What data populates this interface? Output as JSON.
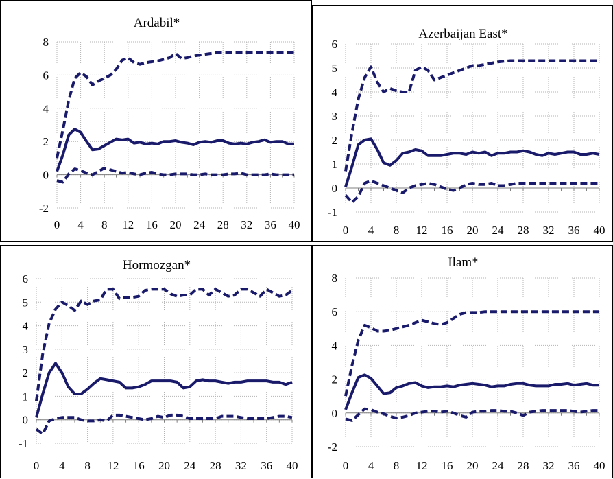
{
  "chart_data": [
    {
      "type": "line",
      "title": "Ardabil*",
      "ylim": [
        -2,
        8
      ],
      "yticks": [
        -2,
        0,
        2,
        4,
        6,
        8
      ],
      "xlim": [
        0,
        40
      ],
      "xticks": [
        0,
        4,
        8,
        12,
        16,
        20,
        24,
        28,
        32,
        36,
        40
      ],
      "grid": true,
      "series": [
        {
          "style": "dashed",
          "x": [
            0,
            1,
            2,
            3,
            4,
            5,
            6,
            7,
            8,
            9,
            10,
            11,
            12,
            13,
            14,
            15,
            16,
            17,
            18,
            19,
            20,
            21,
            22,
            23,
            24,
            25,
            26,
            27,
            28,
            29,
            30,
            31,
            32,
            33,
            34,
            35,
            36,
            37,
            38,
            39,
            40
          ],
          "values": [
            1.0,
            2.7,
            4.5,
            5.8,
            6.15,
            5.9,
            5.4,
            5.65,
            5.8,
            6.0,
            6.35,
            6.9,
            7.05,
            6.75,
            6.65,
            6.75,
            6.8,
            6.85,
            6.95,
            7.05,
            7.3,
            7.0,
            7.05,
            7.15,
            7.2,
            7.25,
            7.3,
            7.35,
            7.35,
            7.35,
            7.35,
            7.35,
            7.35,
            7.35,
            7.35,
            7.35,
            7.35,
            7.35,
            7.35,
            7.35,
            7.35
          ]
        },
        {
          "style": "solid",
          "x": [
            0,
            1,
            2,
            3,
            4,
            5,
            6,
            7,
            8,
            9,
            10,
            11,
            12,
            13,
            14,
            15,
            16,
            17,
            18,
            19,
            20,
            21,
            22,
            23,
            24,
            25,
            26,
            27,
            28,
            29,
            30,
            31,
            32,
            33,
            34,
            35,
            36,
            37,
            38,
            39,
            40
          ],
          "values": [
            0.2,
            1.2,
            2.4,
            2.75,
            2.55,
            2.0,
            1.5,
            1.55,
            1.75,
            1.95,
            2.15,
            2.1,
            2.15,
            1.9,
            1.95,
            1.85,
            1.9,
            1.85,
            2.0,
            2.0,
            2.05,
            1.95,
            1.9,
            1.8,
            1.95,
            2.0,
            1.95,
            2.05,
            2.05,
            1.9,
            1.85,
            1.9,
            1.85,
            1.95,
            2.0,
            2.1,
            1.95,
            2.0,
            2.0,
            1.85,
            1.85
          ]
        },
        {
          "style": "dashed",
          "x": [
            0,
            1,
            2,
            3,
            4,
            5,
            6,
            7,
            8,
            9,
            10,
            11,
            12,
            13,
            14,
            15,
            16,
            17,
            18,
            19,
            20,
            21,
            22,
            23,
            24,
            25,
            26,
            27,
            28,
            29,
            30,
            31,
            32,
            33,
            34,
            35,
            36,
            37,
            38,
            39,
            40
          ],
          "values": [
            -0.35,
            -0.45,
            0.05,
            0.35,
            0.25,
            0.1,
            0.0,
            0.2,
            0.4,
            0.3,
            0.2,
            0.1,
            0.15,
            0.05,
            0.0,
            0.1,
            0.15,
            0.05,
            0.0,
            0.0,
            0.05,
            0.05,
            0.05,
            0.0,
            0.0,
            0.05,
            0.0,
            0.0,
            0.0,
            0.05,
            0.05,
            0.1,
            0.0,
            0.0,
            0.0,
            0.0,
            0.05,
            0.0,
            0.0,
            0.0,
            0.0
          ]
        }
      ]
    },
    {
      "type": "line",
      "title": "Azerbaijan East*",
      "ylim": [
        -1,
        6
      ],
      "yticks": [
        -1,
        0,
        1,
        2,
        3,
        4,
        5,
        6
      ],
      "xlim": [
        0,
        40
      ],
      "xticks": [
        0,
        4,
        8,
        12,
        16,
        20,
        24,
        28,
        32,
        36,
        40
      ],
      "grid": true,
      "series": [
        {
          "style": "dashed",
          "x": [
            0,
            1,
            2,
            3,
            4,
            5,
            6,
            7,
            8,
            9,
            10,
            11,
            12,
            13,
            14,
            15,
            16,
            17,
            18,
            19,
            20,
            21,
            22,
            23,
            24,
            25,
            26,
            27,
            28,
            29,
            30,
            31,
            32,
            33,
            34,
            35,
            36,
            37,
            38,
            39,
            40
          ],
          "values": [
            0.7,
            2.3,
            3.7,
            4.6,
            5.05,
            4.4,
            4.0,
            4.15,
            4.05,
            4.0,
            4.0,
            4.9,
            5.05,
            4.9,
            4.5,
            4.6,
            4.7,
            4.8,
            4.9,
            5.0,
            5.1,
            5.1,
            5.15,
            5.2,
            5.25,
            5.28,
            5.3,
            5.3,
            5.3,
            5.3,
            5.3,
            5.3,
            5.3,
            5.3,
            5.3,
            5.3,
            5.3,
            5.3,
            5.3,
            5.3,
            5.3
          ]
        },
        {
          "style": "solid",
          "x": [
            0,
            1,
            2,
            3,
            4,
            5,
            6,
            7,
            8,
            9,
            10,
            11,
            12,
            13,
            14,
            15,
            16,
            17,
            18,
            19,
            20,
            21,
            22,
            23,
            24,
            25,
            26,
            27,
            28,
            29,
            30,
            31,
            32,
            33,
            34,
            35,
            36,
            37,
            38,
            39,
            40
          ],
          "values": [
            0.05,
            0.9,
            1.8,
            2.0,
            2.05,
            1.6,
            1.05,
            0.95,
            1.15,
            1.45,
            1.5,
            1.6,
            1.55,
            1.35,
            1.35,
            1.35,
            1.4,
            1.45,
            1.45,
            1.4,
            1.5,
            1.45,
            1.5,
            1.35,
            1.45,
            1.45,
            1.5,
            1.5,
            1.55,
            1.5,
            1.4,
            1.35,
            1.45,
            1.4,
            1.45,
            1.5,
            1.5,
            1.4,
            1.4,
            1.45,
            1.4
          ]
        },
        {
          "style": "dashed",
          "x": [
            0,
            1,
            2,
            3,
            4,
            5,
            6,
            7,
            8,
            9,
            10,
            11,
            12,
            13,
            14,
            15,
            16,
            17,
            18,
            19,
            20,
            21,
            22,
            23,
            24,
            25,
            26,
            27,
            28,
            29,
            30,
            31,
            32,
            33,
            34,
            35,
            36,
            37,
            38,
            39,
            40
          ],
          "values": [
            -0.3,
            -0.6,
            -0.35,
            0.2,
            0.3,
            0.2,
            0.1,
            0.0,
            -0.1,
            -0.2,
            0.0,
            0.1,
            0.15,
            0.2,
            0.15,
            0.05,
            -0.05,
            -0.1,
            0.0,
            0.15,
            0.2,
            0.15,
            0.15,
            0.2,
            0.1,
            0.1,
            0.15,
            0.2,
            0.2,
            0.2,
            0.2,
            0.2,
            0.2,
            0.2,
            0.2,
            0.2,
            0.2,
            0.2,
            0.2,
            0.2,
            0.2
          ]
        }
      ]
    },
    {
      "type": "line",
      "title": "Hormozgan*",
      "ylim": [
        -1,
        6
      ],
      "yticks": [
        -1,
        0,
        1,
        2,
        3,
        4,
        5,
        6
      ],
      "xlim": [
        0,
        40
      ],
      "xticks": [
        0,
        4,
        8,
        12,
        16,
        20,
        24,
        28,
        32,
        36,
        40
      ],
      "grid": true,
      "series": [
        {
          "style": "dashed",
          "x": [
            0,
            1,
            2,
            3,
            4,
            5,
            6,
            7,
            8,
            9,
            10,
            11,
            12,
            13,
            14,
            15,
            16,
            17,
            18,
            19,
            20,
            21,
            22,
            23,
            24,
            25,
            26,
            27,
            28,
            29,
            30,
            31,
            32,
            33,
            34,
            35,
            36,
            37,
            38,
            39,
            40
          ],
          "values": [
            0.8,
            2.8,
            4.1,
            4.7,
            5.0,
            4.85,
            4.65,
            5.05,
            4.9,
            5.05,
            5.1,
            5.55,
            5.55,
            5.15,
            5.2,
            5.2,
            5.25,
            5.5,
            5.55,
            5.55,
            5.55,
            5.35,
            5.25,
            5.3,
            5.3,
            5.55,
            5.55,
            5.3,
            5.55,
            5.4,
            5.25,
            5.3,
            5.55,
            5.55,
            5.4,
            5.25,
            5.55,
            5.4,
            5.25,
            5.3,
            5.5
          ]
        },
        {
          "style": "solid",
          "x": [
            0,
            1,
            2,
            3,
            4,
            5,
            6,
            7,
            8,
            9,
            10,
            11,
            12,
            13,
            14,
            15,
            16,
            17,
            18,
            19,
            20,
            21,
            22,
            23,
            24,
            25,
            26,
            27,
            28,
            29,
            30,
            31,
            32,
            33,
            34,
            35,
            36,
            37,
            38,
            39,
            40
          ],
          "values": [
            0.1,
            1.1,
            2.0,
            2.4,
            2.0,
            1.4,
            1.1,
            1.1,
            1.3,
            1.55,
            1.75,
            1.7,
            1.65,
            1.6,
            1.35,
            1.35,
            1.4,
            1.5,
            1.65,
            1.65,
            1.65,
            1.65,
            1.6,
            1.35,
            1.4,
            1.65,
            1.7,
            1.65,
            1.65,
            1.6,
            1.55,
            1.6,
            1.6,
            1.65,
            1.65,
            1.65,
            1.65,
            1.6,
            1.6,
            1.5,
            1.6
          ]
        },
        {
          "style": "dashed",
          "x": [
            0,
            1,
            2,
            3,
            4,
            5,
            6,
            7,
            8,
            9,
            10,
            11,
            12,
            13,
            14,
            15,
            16,
            17,
            18,
            19,
            20,
            21,
            22,
            23,
            24,
            25,
            26,
            27,
            28,
            29,
            30,
            31,
            32,
            33,
            34,
            35,
            36,
            37,
            38,
            39,
            40
          ],
          "values": [
            -0.4,
            -0.6,
            -0.05,
            0.05,
            0.1,
            0.1,
            0.1,
            0.0,
            -0.05,
            -0.05,
            0.0,
            -0.05,
            0.2,
            0.2,
            0.15,
            0.1,
            0.05,
            0.0,
            0.05,
            0.15,
            0.1,
            0.2,
            0.2,
            0.15,
            0.05,
            0.05,
            0.05,
            0.05,
            0.05,
            0.15,
            0.15,
            0.15,
            0.1,
            0.05,
            0.05,
            0.05,
            0.05,
            0.1,
            0.15,
            0.15,
            0.1
          ]
        }
      ]
    },
    {
      "type": "line",
      "title": "Ilam*",
      "ylim": [
        -2,
        8
      ],
      "yticks": [
        -2,
        0,
        2,
        4,
        6,
        8
      ],
      "xlim": [
        0,
        40
      ],
      "xticks": [
        0,
        4,
        8,
        12,
        16,
        20,
        24,
        28,
        32,
        36,
        40
      ],
      "grid": true,
      "series": [
        {
          "style": "dashed",
          "x": [
            0,
            1,
            2,
            3,
            4,
            5,
            6,
            7,
            8,
            9,
            10,
            11,
            12,
            13,
            14,
            15,
            16,
            17,
            18,
            19,
            20,
            21,
            22,
            23,
            24,
            25,
            26,
            27,
            28,
            29,
            30,
            31,
            32,
            33,
            34,
            35,
            36,
            37,
            38,
            39,
            40
          ],
          "values": [
            1.0,
            2.8,
            4.3,
            5.2,
            5.05,
            4.85,
            4.85,
            4.9,
            5.0,
            5.1,
            5.2,
            5.35,
            5.5,
            5.4,
            5.3,
            5.25,
            5.35,
            5.6,
            5.85,
            5.95,
            5.95,
            5.95,
            6.0,
            6.0,
            6.0,
            6.0,
            6.0,
            6.0,
            6.0,
            6.0,
            6.0,
            6.0,
            6.0,
            6.0,
            6.0,
            6.0,
            6.0,
            6.0,
            6.0,
            6.0,
            6.0
          ]
        },
        {
          "style": "solid",
          "x": [
            0,
            1,
            2,
            3,
            4,
            5,
            6,
            7,
            8,
            9,
            10,
            11,
            12,
            13,
            14,
            15,
            16,
            17,
            18,
            19,
            20,
            21,
            22,
            23,
            24,
            25,
            26,
            27,
            28,
            29,
            30,
            31,
            32,
            33,
            34,
            35,
            36,
            37,
            38,
            39,
            40
          ],
          "values": [
            0.2,
            1.2,
            2.1,
            2.25,
            2.05,
            1.6,
            1.15,
            1.2,
            1.5,
            1.6,
            1.75,
            1.8,
            1.6,
            1.5,
            1.55,
            1.55,
            1.6,
            1.55,
            1.65,
            1.7,
            1.75,
            1.7,
            1.65,
            1.55,
            1.6,
            1.6,
            1.7,
            1.75,
            1.75,
            1.65,
            1.6,
            1.6,
            1.6,
            1.7,
            1.7,
            1.75,
            1.65,
            1.7,
            1.75,
            1.65,
            1.65
          ]
        },
        {
          "style": "dashed",
          "x": [
            0,
            1,
            2,
            3,
            4,
            5,
            6,
            7,
            8,
            9,
            10,
            11,
            12,
            13,
            14,
            15,
            16,
            17,
            18,
            19,
            20,
            21,
            22,
            23,
            24,
            25,
            26,
            27,
            28,
            29,
            30,
            31,
            32,
            33,
            34,
            35,
            36,
            37,
            38,
            39,
            40
          ],
          "values": [
            -0.35,
            -0.45,
            -0.1,
            0.25,
            0.2,
            0.05,
            -0.05,
            -0.2,
            -0.3,
            -0.25,
            -0.15,
            0.0,
            0.05,
            0.1,
            0.1,
            0.05,
            0.1,
            0.0,
            -0.15,
            -0.25,
            0.05,
            0.1,
            0.1,
            0.15,
            0.15,
            0.1,
            0.1,
            0.0,
            -0.15,
            0.05,
            0.1,
            0.15,
            0.15,
            0.15,
            0.15,
            0.15,
            0.1,
            0.05,
            0.1,
            0.15,
            0.15
          ]
        }
      ]
    }
  ],
  "colors": {
    "line": "#1a1a6b",
    "grid": "#b3b3b3",
    "axis": "#7f7f7f"
  }
}
